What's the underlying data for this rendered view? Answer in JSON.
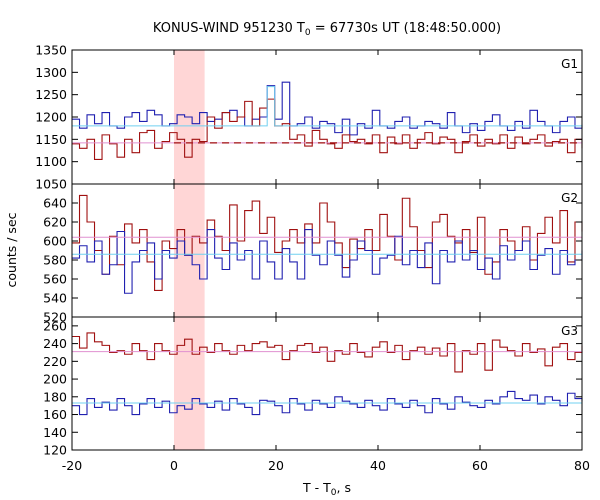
{
  "chart_data": {
    "type": "line",
    "title": "KONUS-WIND 951230 T0 = 67730s UT (18:48:50.000)",
    "title_parts": {
      "pre": "KONUS-WIND 951230 T",
      "sub": "0",
      "post": " = 67730s UT (18:48:50.000)"
    },
    "xlabel": "T - T0, s",
    "xlabel_parts": {
      "pre": "T - T",
      "sub": "0",
      "post": ", s"
    },
    "ylabel": "counts / sec",
    "xlim": [
      -20,
      80
    ],
    "xticks": [
      -20,
      0,
      20,
      40,
      60,
      80
    ],
    "bin_width_s": 1.472,
    "highlight": {
      "x0": 0,
      "x1": 6
    },
    "colors": {
      "dark_red": "#a01010",
      "blue": "#2020b0",
      "pink": "#e090d0",
      "light_blue": "#70d0f0",
      "band": "#ffd6d6"
    },
    "panels": [
      {
        "label": "G1",
        "ylim": [
          1050,
          1350
        ],
        "yticks": [
          1050,
          1100,
          1150,
          1200,
          1250,
          1300,
          1350
        ],
        "dashed_level": 1142,
        "series": [
          {
            "color": "blue",
            "values": [
              1195,
              1175,
              1205,
              1185,
              1210,
              1180,
              1175,
              1200,
              1210,
              1190,
              1215,
              1205,
              1180,
              1185,
              1205,
              1200,
              1185,
              1210,
              1190,
              1195,
              1210,
              1215,
              1200,
              1180,
              1195,
              1200,
              1270,
              1195,
              1278,
              1180,
              1185,
              1200,
              1175,
              1190,
              1185,
              1165,
              1195,
              1160,
              1185,
              1175,
              1215,
              1180,
              1175,
              1190,
              1200,
              1175,
              1180,
              1190,
              1185,
              1175,
              1210,
              1180,
              1165,
              1185,
              1170,
              1190,
              1205,
              1180,
              1170,
              1190,
              1175,
              1215,
              1190,
              1180,
              1165,
              1190,
              1200,
              1175,
              1183
            ]
          },
          {
            "color": "dark_red",
            "values": [
              1140,
              1130,
              1150,
              1105,
              1160,
              1140,
              1110,
              1150,
              1120,
              1165,
              1170,
              1130,
              1145,
              1165,
              1150,
              1110,
              1150,
              1145,
              1200,
              1175,
              1210,
              1190,
              1200,
              1235,
              1180,
              1220,
              1240,
              1180,
              1185,
              1150,
              1160,
              1135,
              1170,
              1150,
              1140,
              1130,
              1160,
              1145,
              1150,
              1140,
              1160,
              1120,
              1155,
              1140,
              1160,
              1130,
              1150,
              1165,
              1140,
              1155,
              1150,
              1120,
              1145,
              1160,
              1135,
              1150,
              1140,
              1160,
              1130,
              1155,
              1140,
              1150,
              1160,
              1135,
              1145,
              1150,
              1120,
              1150,
              1130
            ]
          },
          {
            "color": "pink",
            "step": true,
            "values": [
              1142,
              1142,
              1142,
              1142,
              1142,
              1142,
              1142,
              1142,
              1142,
              1142,
              1142,
              1142,
              1142,
              1142,
              1142,
              1142,
              1142,
              1142,
              1142,
              1142,
              1142,
              1142,
              1142,
              1142,
              1142,
              1142,
              1142,
              1142,
              1142,
              1142,
              1142,
              1142,
              1142,
              1142,
              1142,
              1142,
              1142,
              1142,
              1142,
              1142,
              1142,
              1142,
              1142,
              1142,
              1142,
              1142,
              1142,
              1142,
              1142,
              1142,
              1142,
              1142,
              1142,
              1142,
              1142,
              1142,
              1142,
              1142,
              1142,
              1142,
              1142,
              1142,
              1142,
              1142,
              1142,
              1142,
              1142,
              1142,
              1142
            ]
          },
          {
            "color": "light_blue",
            "step": true,
            "values": [
              1180,
              1180,
              1180,
              1180,
              1180,
              1180,
              1180,
              1180,
              1180,
              1180,
              1180,
              1180,
              1180,
              1180,
              1180,
              1180,
              1180,
              1180,
              1180,
              1180,
              1180,
              1180,
              1180,
              1180,
              1180,
              1180,
              1268,
              1180,
              1180,
              1180,
              1180,
              1180,
              1180,
              1180,
              1180,
              1180,
              1180,
              1180,
              1180,
              1180,
              1180,
              1180,
              1180,
              1180,
              1180,
              1180,
              1180,
              1180,
              1180,
              1180,
              1180,
              1180,
              1180,
              1180,
              1180,
              1180,
              1180,
              1180,
              1180,
              1180,
              1180,
              1180,
              1180,
              1180,
              1180,
              1180,
              1180,
              1180,
              1180
            ]
          }
        ]
      },
      {
        "label": "G2",
        "ylim": [
          520,
          660
        ],
        "yticks": [
          520,
          540,
          560,
          580,
          600,
          620,
          640
        ],
        "series": [
          {
            "color": "dark_red",
            "values": [
              598,
              648,
              620,
              590,
              565,
              605,
              575,
              618,
              598,
              612,
              578,
              548,
              600,
              592,
              612,
              585,
              605,
              598,
              622,
              605,
              590,
              638,
              600,
              632,
              642,
              608,
              625,
              588,
              600,
              612,
              598,
              618,
              598,
              640,
              620,
              598,
              572,
              602,
              592,
              612,
              590,
              628,
              605,
              580,
              645,
              615,
              590,
              572,
              620,
              628,
              605,
              598,
              612,
              588,
              625,
              565,
              578,
              612,
              600,
              590,
              615,
              580,
              608,
              625,
              598,
              632,
              578,
              620,
              610
            ]
          },
          {
            "color": "blue",
            "values": [
              582,
              595,
              578,
              600,
              565,
              575,
              610,
              545,
              578,
              590,
              598,
              560,
              590,
              582,
              600,
              585,
              575,
              560,
              612,
              582,
              570,
              598,
              580,
              590,
              560,
              600,
              578,
              560,
              592,
              578,
              560,
              612,
              585,
              575,
              600,
              585,
              562,
              580,
              600,
              590,
              565,
              582,
              585,
              605,
              575,
              590,
              572,
              598,
              555,
              590,
              578,
              600,
              580,
              590,
              570,
              582,
              560,
              595,
              580,
              590,
              600,
              570,
              585,
              592,
              565,
              590,
              575,
              580,
              590
            ]
          },
          {
            "color": "pink",
            "step": true,
            "values": [
              604,
              604,
              604,
              604,
              604,
              604,
              604,
              604,
              604,
              604,
              604,
              604,
              604,
              604,
              604,
              604,
              604,
              604,
              604,
              604,
              604,
              604,
              604,
              604,
              604,
              604,
              604,
              604,
              604,
              604,
              604,
              604,
              604,
              604,
              604,
              604,
              604,
              604,
              604,
              604,
              604,
              604,
              604,
              604,
              604,
              604,
              604,
              604,
              604,
              604,
              604,
              604,
              604,
              604,
              604,
              604,
              604,
              604,
              604,
              604,
              604,
              604,
              604,
              604,
              604,
              604,
              604,
              604,
              604
            ]
          },
          {
            "color": "light_blue",
            "step": true,
            "values": [
              586,
              586,
              586,
              586,
              586,
              586,
              586,
              586,
              586,
              586,
              586,
              586,
              586,
              586,
              586,
              586,
              586,
              586,
              586,
              586,
              586,
              586,
              586,
              586,
              586,
              586,
              586,
              586,
              586,
              586,
              586,
              586,
              586,
              586,
              586,
              586,
              586,
              586,
              586,
              586,
              586,
              586,
              586,
              586,
              586,
              586,
              586,
              586,
              586,
              586,
              586,
              586,
              586,
              586,
              586,
              586,
              586,
              586,
              586,
              586,
              586,
              586,
              586,
              586,
              586,
              586,
              586,
              586,
              586
            ]
          }
        ]
      },
      {
        "label": "G3",
        "ylim": [
          120,
          270
        ],
        "yticks": [
          120,
          140,
          160,
          180,
          200,
          220,
          240,
          260
        ],
        "series": [
          {
            "color": "dark_red",
            "values": [
              248,
              235,
              252,
              242,
              238,
              230,
              232,
              228,
              240,
              232,
              222,
              240,
              232,
              228,
              238,
              245,
              228,
              236,
              230,
              240,
              232,
              228,
              238,
              232,
              240,
              242,
              236,
              238,
              222,
              232,
              238,
              240,
              230,
              236,
              220,
              232,
              228,
              240,
              230,
              225,
              236,
              242,
              230,
              238,
              222,
              232,
              236,
              228,
              235,
              226,
              240,
              208,
              232,
              228,
              240,
              210,
              244,
              236,
              232,
              226,
              240,
              230,
              234,
              215,
              236,
              240,
              222,
              230,
              238
            ]
          },
          {
            "color": "blue",
            "values": [
              170,
              160,
              178,
              168,
              174,
              165,
              178,
              170,
              160,
              172,
              178,
              168,
              175,
              162,
              170,
              166,
              178,
              172,
              168,
              175,
              165,
              178,
              172,
              168,
              160,
              176,
              175,
              170,
              162,
              178,
              172,
              165,
              176,
              172,
              168,
              180,
              175,
              172,
              168,
              176,
              170,
              165,
              178,
              172,
              168,
              176,
              170,
              162,
              178,
              172,
              166,
              180,
              174,
              170,
              168,
              176,
              172,
              180,
              186,
              178,
              176,
              182,
              172,
              180,
              176,
              170,
              184,
              178,
              175
            ]
          },
          {
            "color": "pink",
            "step": true,
            "values": [
              231,
              231,
              231,
              231,
              231,
              231,
              231,
              231,
              231,
              231,
              231,
              231,
              231,
              231,
              231,
              231,
              231,
              231,
              231,
              231,
              231,
              231,
              231,
              231,
              231,
              231,
              231,
              231,
              231,
              231,
              231,
              231,
              231,
              231,
              231,
              231,
              231,
              231,
              231,
              231,
              231,
              231,
              231,
              231,
              231,
              231,
              231,
              231,
              231,
              231,
              231,
              231,
              231,
              231,
              231,
              231,
              231,
              231,
              231,
              231,
              231,
              231,
              231,
              231,
              231,
              231,
              231,
              231,
              231
            ]
          },
          {
            "color": "light_blue",
            "step": true,
            "values": [
              173,
              173,
              173,
              173,
              173,
              173,
              173,
              173,
              173,
              173,
              173,
              173,
              173,
              173,
              173,
              173,
              173,
              173,
              173,
              173,
              173,
              173,
              173,
              173,
              173,
              173,
              173,
              173,
              173,
              173,
              173,
              173,
              173,
              173,
              173,
              173,
              173,
              173,
              173,
              173,
              173,
              173,
              173,
              173,
              173,
              173,
              173,
              173,
              173,
              173,
              173,
              173,
              173,
              173,
              173,
              173,
              173,
              173,
              173,
              173,
              173,
              173,
              173,
              173,
              173,
              173,
              173,
              173,
              173
            ]
          }
        ]
      }
    ]
  }
}
